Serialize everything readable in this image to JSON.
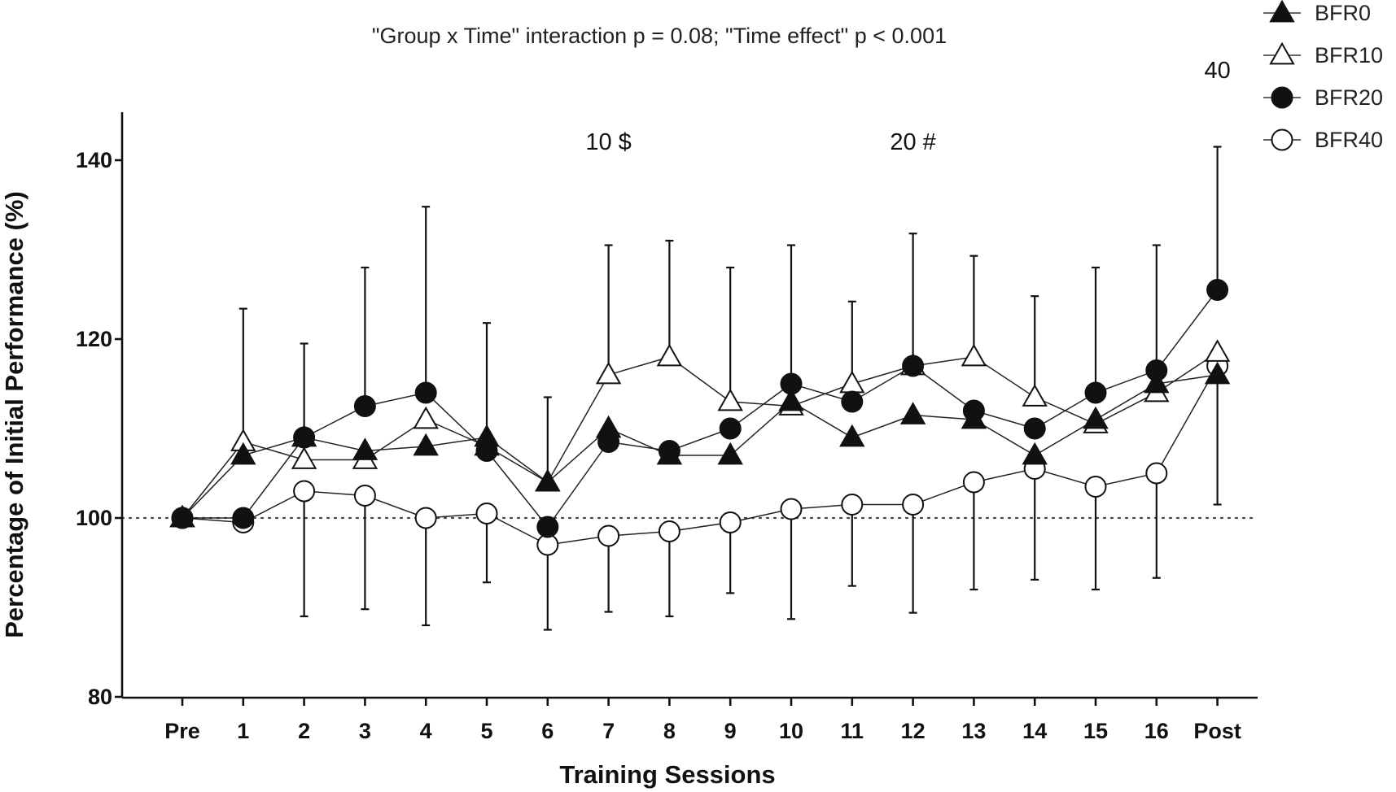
{
  "chart_data": {
    "type": "line",
    "title": "",
    "subtitle": "\"Group x Time\" interaction p = 0.08; \"Time effect\" p < 0.001",
    "xlabel": "Training Sessions",
    "ylabel": "Percentage of Initial Performance (%)",
    "categories": [
      "Pre",
      "1",
      "2",
      "3",
      "4",
      "5",
      "6",
      "7",
      "8",
      "9",
      "10",
      "11",
      "12",
      "13",
      "14",
      "15",
      "16",
      "Post"
    ],
    "ylim": [
      80,
      145
    ],
    "yticks": [
      "80",
      "100",
      "120",
      "140"
    ],
    "reference_line": 100,
    "grid": false,
    "legend_position": "top-right",
    "series": [
      {
        "name": "BFR0",
        "marker": "triangle-filled",
        "values": [
          100,
          107,
          109,
          107.5,
          108,
          109,
          104,
          110,
          107,
          107,
          113,
          109,
          111.5,
          111,
          107,
          111,
          115,
          116
        ]
      },
      {
        "name": "BFR10",
        "marker": "triangle-open",
        "values": [
          100,
          108.5,
          106.5,
          106.5,
          111,
          108,
          104,
          116,
          118,
          113,
          112.5,
          115,
          117,
          118,
          113.5,
          110.5,
          114,
          118.5
        ]
      },
      {
        "name": "BFR20",
        "marker": "circle-filled",
        "values": [
          100,
          100,
          109,
          112.5,
          114,
          107.5,
          99,
          108.5,
          107.5,
          110,
          115,
          113,
          117,
          112,
          110,
          114,
          116.5,
          125.5
        ]
      },
      {
        "name": "BFR40",
        "marker": "circle-open",
        "values": [
          100,
          99.5,
          103,
          102.5,
          100,
          100.5,
          97,
          98,
          98.5,
          99.5,
          101,
          101.5,
          101.5,
          104,
          105.5,
          103.5,
          105,
          117
        ]
      }
    ],
    "error_bars": [
      {
        "x": "1",
        "y": 107,
        "upper": 123.4
      },
      {
        "x": "2",
        "y": 103,
        "lower": 89
      },
      {
        "x": "2",
        "y": 109,
        "upper": 119.5
      },
      {
        "x": "3",
        "y": 102.5,
        "lower": 89.8
      },
      {
        "x": "3",
        "y": 112.5,
        "upper": 128
      },
      {
        "x": "4",
        "y": 100,
        "lower": 88
      },
      {
        "x": "4",
        "y": 114,
        "upper": 134.8
      },
      {
        "x": "5",
        "y": 100.5,
        "lower": 92.8
      },
      {
        "x": "5",
        "y": 109,
        "upper": 121.8
      },
      {
        "x": "6",
        "y": 97,
        "lower": 87.5
      },
      {
        "x": "6",
        "y": 104,
        "upper": 113.5
      },
      {
        "x": "7",
        "y": 98,
        "lower": 89.5
      },
      {
        "x": "7",
        "y": 116,
        "upper": 130.5
      },
      {
        "x": "8",
        "y": 98.5,
        "lower": 89
      },
      {
        "x": "8",
        "y": 118,
        "upper": 131
      },
      {
        "x": "9",
        "y": 99.5,
        "lower": 91.6
      },
      {
        "x": "9",
        "y": 113,
        "upper": 128
      },
      {
        "x": "10",
        "y": 101,
        "lower": 88.7
      },
      {
        "x": "10",
        "y": 115,
        "upper": 130.5
      },
      {
        "x": "11",
        "y": 101.5,
        "lower": 92.4
      },
      {
        "x": "11",
        "y": 115,
        "upper": 124.2
      },
      {
        "x": "12",
        "y": 101.5,
        "lower": 89.4
      },
      {
        "x": "12",
        "y": 117,
        "upper": 131.8
      },
      {
        "x": "13",
        "y": 104,
        "lower": 92
      },
      {
        "x": "13",
        "y": 118,
        "upper": 129.3
      },
      {
        "x": "14",
        "y": 105.5,
        "lower": 93.1
      },
      {
        "x": "14",
        "y": 113.5,
        "upper": 124.8
      },
      {
        "x": "15",
        "y": 103.5,
        "lower": 92
      },
      {
        "x": "15",
        "y": 114,
        "upper": 128
      },
      {
        "x": "16",
        "y": 105,
        "lower": 93.3
      },
      {
        "x": "16",
        "y": 116.5,
        "upper": 130.5
      },
      {
        "x": "Post",
        "y": 116,
        "lower": 101.5
      },
      {
        "x": "Post",
        "y": 125.5,
        "upper": 141.5
      }
    ],
    "annotations": [
      {
        "text": "10 $",
        "x": "7",
        "y": 141
      },
      {
        "text": "20 #",
        "x": "12",
        "y": 141
      },
      {
        "text": "40",
        "x": "Post",
        "y": 149
      }
    ]
  }
}
